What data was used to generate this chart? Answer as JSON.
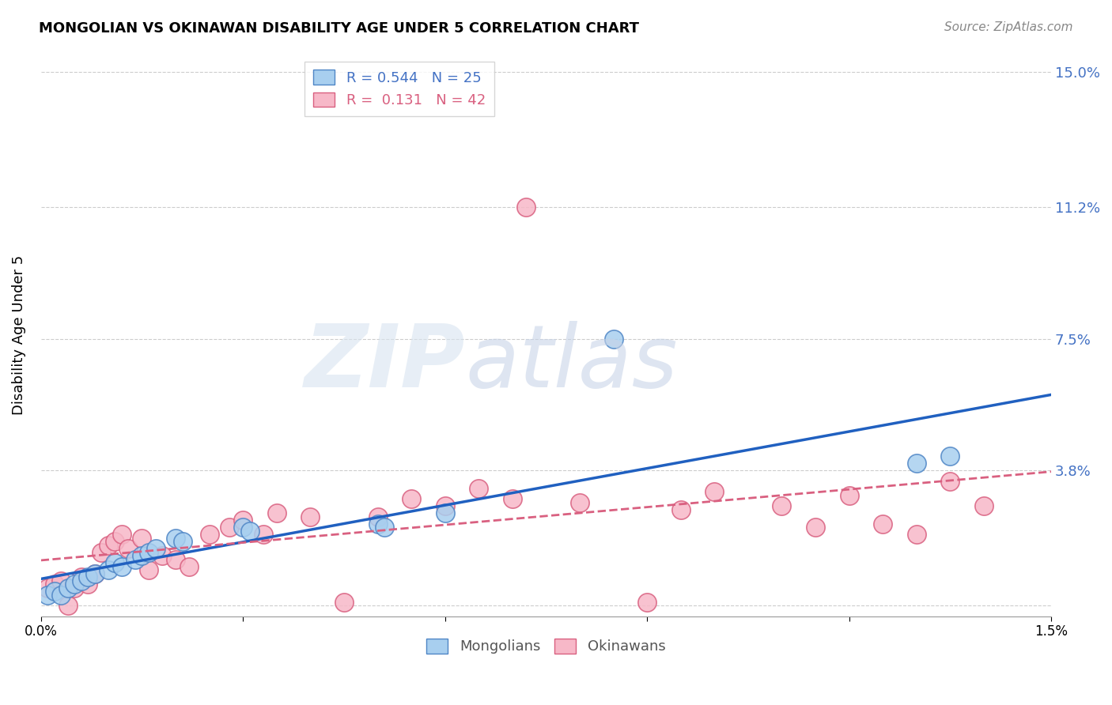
{
  "title": "MONGOLIAN VS OKINAWAN DISABILITY AGE UNDER 5 CORRELATION CHART",
  "source": "Source: ZipAtlas.com",
  "ylabel": "Disability Age Under 5",
  "yticks": [
    0.0,
    0.038,
    0.075,
    0.112,
    0.15
  ],
  "ytick_labels": [
    "",
    "3.8%",
    "7.5%",
    "11.2%",
    "15.0%"
  ],
  "xmin": 0.0,
  "xmax": 0.015,
  "ymin": -0.003,
  "ymax": 0.155,
  "mongolian_face_color": "#A8CFEF",
  "mongolian_edge_color": "#4F86C6",
  "okinawan_face_color": "#F7B8C8",
  "okinawan_edge_color": "#D96080",
  "mongolian_line_color": "#2060C0",
  "okinawan_line_color": "#D96080",
  "legend_mongolian_R": "0.544",
  "legend_mongolian_N": "25",
  "legend_okinawan_R": "0.131",
  "legend_okinawan_N": "42",
  "mongolian_x": [
    0.0001,
    0.0002,
    0.0003,
    0.0004,
    0.0005,
    0.0006,
    0.0007,
    0.0008,
    0.001,
    0.0011,
    0.0012,
    0.0014,
    0.0015,
    0.0016,
    0.0017,
    0.002,
    0.0021,
    0.003,
    0.0031,
    0.005,
    0.0051,
    0.006,
    0.0085,
    0.013,
    0.0135
  ],
  "mongolian_y": [
    0.003,
    0.004,
    0.003,
    0.005,
    0.006,
    0.007,
    0.008,
    0.009,
    0.01,
    0.012,
    0.011,
    0.013,
    0.014,
    0.015,
    0.016,
    0.019,
    0.018,
    0.022,
    0.021,
    0.023,
    0.022,
    0.026,
    0.075,
    0.04,
    0.042
  ],
  "okinawan_x": [
    0.0001,
    0.0002,
    0.0003,
    0.0004,
    0.0005,
    0.0006,
    0.0007,
    0.0008,
    0.0009,
    0.001,
    0.0011,
    0.0012,
    0.0013,
    0.0015,
    0.0016,
    0.0018,
    0.002,
    0.0022,
    0.0025,
    0.0028,
    0.003,
    0.0033,
    0.0035,
    0.004,
    0.0045,
    0.005,
    0.0055,
    0.006,
    0.0065,
    0.007,
    0.0072,
    0.008,
    0.009,
    0.0095,
    0.01,
    0.011,
    0.0115,
    0.012,
    0.0125,
    0.013,
    0.0135,
    0.014
  ],
  "okinawan_y": [
    0.005,
    0.006,
    0.007,
    0.0,
    0.005,
    0.008,
    0.006,
    0.009,
    0.015,
    0.017,
    0.018,
    0.02,
    0.016,
    0.019,
    0.01,
    0.014,
    0.013,
    0.011,
    0.02,
    0.022,
    0.024,
    0.02,
    0.026,
    0.025,
    0.001,
    0.025,
    0.03,
    0.028,
    0.033,
    0.03,
    0.112,
    0.029,
    0.001,
    0.027,
    0.032,
    0.028,
    0.022,
    0.031,
    0.023,
    0.02,
    0.035,
    0.028
  ]
}
